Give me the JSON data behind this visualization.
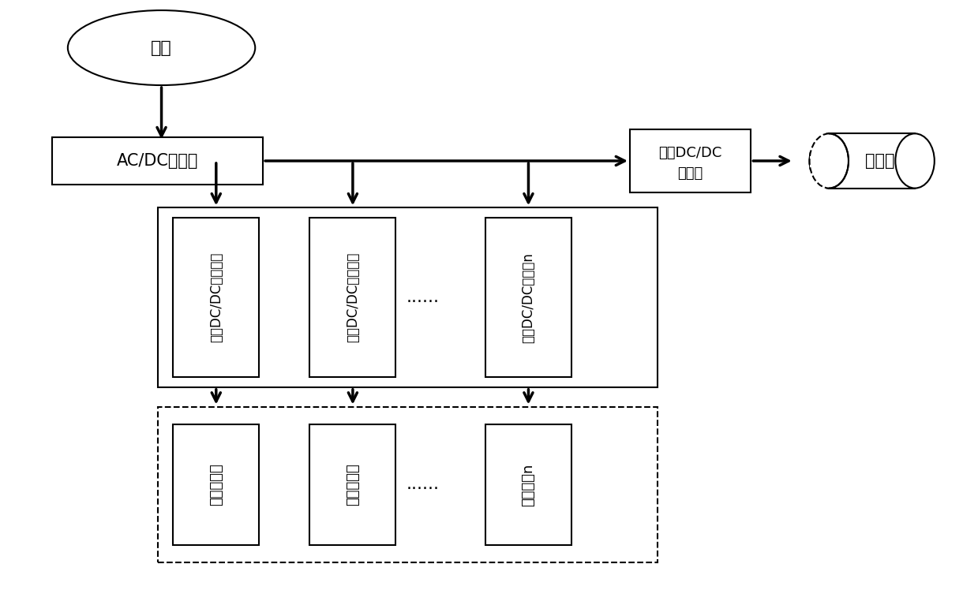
{
  "bg_color": "#ffffff",
  "line_color": "#000000",
  "figsize": [
    12.39,
    7.67
  ],
  "dpi": 100,
  "grid_label": "电网",
  "acdc_label": "AC/DC变流器",
  "bidir_line1": "双向DC/DC",
  "bidir_line2": "变流器",
  "storage_label": "储能堆",
  "conv_labels": [
    "单向DC/DC变流器１",
    "单向DC/DC变流器２",
    "单向DC/DC变流器n"
  ],
  "ev_labels": [
    "电动汽车１",
    "电动汽车２",
    "电动汽车n"
  ],
  "dots": "......",
  "lw": 1.5,
  "arrow_lw": 2.5
}
